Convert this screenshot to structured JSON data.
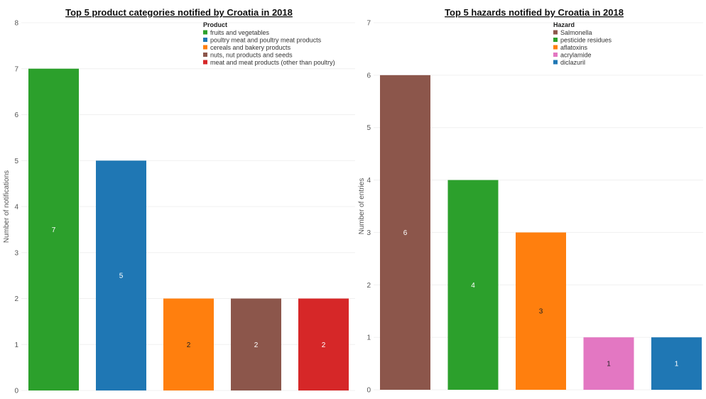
{
  "chart_data": [
    {
      "type": "bar",
      "title": "Top 5 product categories notified by Croatia in 2018",
      "ylabel": "Number of notifications",
      "ylim": [
        0,
        8
      ],
      "yticks": [
        "0",
        "1",
        "2",
        "3",
        "4",
        "5",
        "6",
        "7",
        "8"
      ],
      "grid": true,
      "legend_title": "Product",
      "legend_position": "top-right",
      "categories": [
        "fruits and vegetables",
        "poultry meat and poultry meat products",
        "cereals and bakery products",
        "nuts, nut products and seeds",
        "meat and meat products (other than poultry)"
      ],
      "values": [
        7,
        5,
        2,
        2,
        2
      ],
      "data_labels": [
        "7",
        "5",
        "2",
        "2",
        "2"
      ],
      "colors": [
        "#2ca02c",
        "#1f77b4",
        "#ff7f0e",
        "#8c564b",
        "#d62728"
      ],
      "label_colors": [
        "#ffffff",
        "#ffffff",
        "#222222",
        "#ffffff",
        "#ffffff"
      ]
    },
    {
      "type": "bar",
      "title": "Top 5 hazards notified by Croatia in 2018",
      "ylabel": "Number of entries",
      "ylim": [
        0,
        7
      ],
      "yticks": [
        "0",
        "1",
        "2",
        "3",
        "4",
        "5",
        "6",
        "7"
      ],
      "grid": true,
      "legend_title": "Hazard",
      "legend_position": "top-right",
      "categories": [
        "Salmonella",
        "pesticide residues",
        "aflatoxins",
        "acrylamide",
        "diclazuril"
      ],
      "values": [
        6,
        4,
        3,
        1,
        1
      ],
      "data_labels": [
        "6",
        "4",
        "3",
        "1",
        "1"
      ],
      "colors": [
        "#8c564b",
        "#2ca02c",
        "#ff7f0e",
        "#e377c2",
        "#1f77b4"
      ],
      "label_colors": [
        "#ffffff",
        "#ffffff",
        "#222222",
        "#222222",
        "#ffffff"
      ]
    }
  ]
}
